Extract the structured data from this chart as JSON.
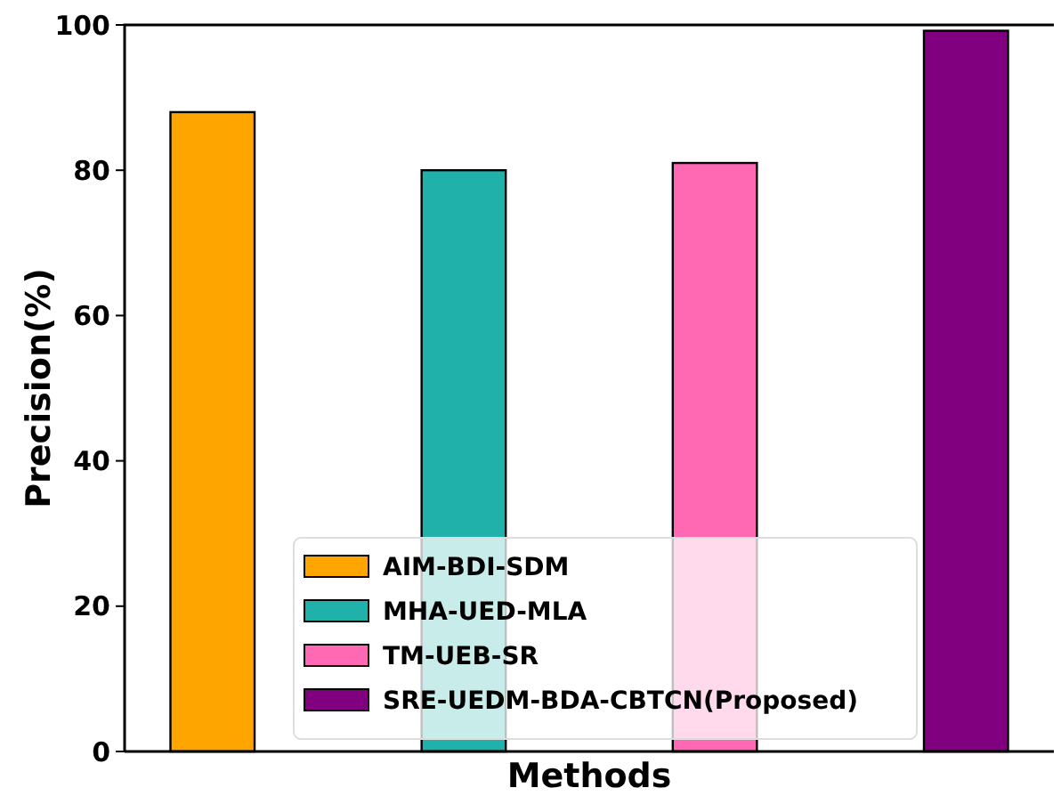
{
  "chart_data": {
    "type": "bar",
    "xlabel": "Methods",
    "ylabel": "Precision(%)",
    "categories": [
      null,
      null,
      null,
      null
    ],
    "series": [
      {
        "name": "AIM-BDI-SDM",
        "color": "#ffa500",
        "values": [
          88,
          null,
          null,
          null
        ]
      },
      {
        "name": "MHA-UED-MLA",
        "color": "#20b2aa",
        "values": [
          null,
          80,
          null,
          null
        ]
      },
      {
        "name": "TM-UEB-SR",
        "color": "#ff69b4",
        "values": [
          null,
          null,
          81,
          null
        ]
      },
      {
        "name": "SRE-UEDM-BDA-CBTCN(Proposed)",
        "color": "#800080",
        "values": [
          null,
          null,
          null,
          99.2
        ]
      }
    ],
    "ylim": [
      0,
      100
    ],
    "yticks": [
      0,
      20,
      40,
      60,
      80,
      100
    ],
    "legend": "bottom",
    "grid": false
  }
}
